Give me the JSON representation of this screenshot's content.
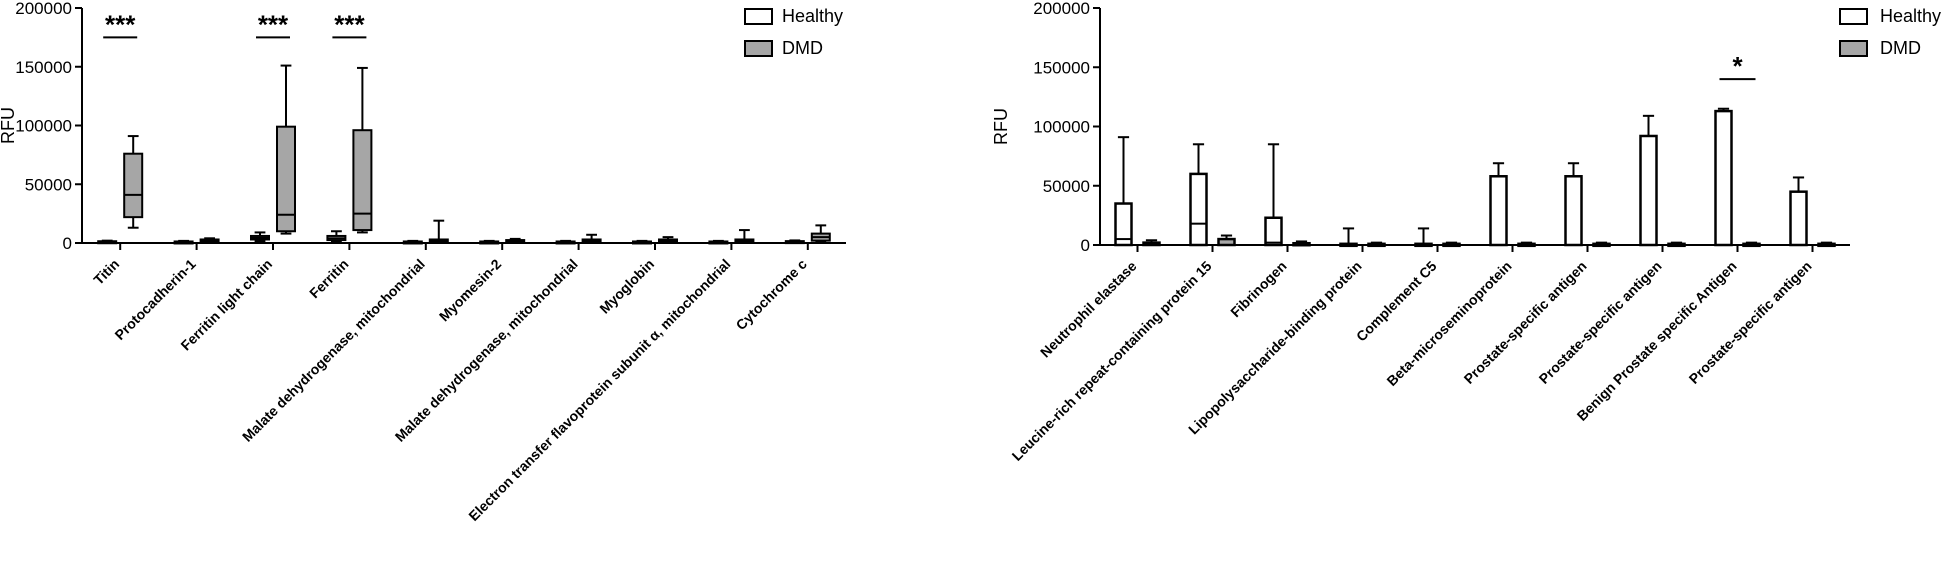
{
  "chart_data": [
    {
      "type": "box",
      "ylabel": "RFU",
      "ylim": [
        0,
        200000
      ],
      "yticks": [
        0,
        50000,
        100000,
        150000,
        200000
      ],
      "ytick_labels": [
        "0",
        "50000",
        "100000",
        "150000",
        "200000"
      ],
      "legend": {
        "placement": "top-right",
        "entries": [
          {
            "name": "Healthy",
            "color": "#ffffff"
          },
          {
            "name": "DMD",
            "color": "#a6a6a6"
          }
        ]
      },
      "categories": [
        "Titin",
        "Protocadherin-1",
        "Ferritin light chain",
        "Ferritin",
        "Malate dehydrogenase, mitochondrial",
        "Myomesin-2",
        "Malate dehydrogenase, mitochondrial",
        "Myoglobin",
        "Electron transfer flavoprotein subunit α, mitochondrial",
        "Cytochrome c"
      ],
      "series": [
        {
          "name": "Healthy",
          "color": "#ffffff",
          "boxes": [
            {
              "min": 500,
              "q1": 800,
              "median": 1200,
              "q3": 1500,
              "max": 2000
            },
            {
              "min": 500,
              "q1": 800,
              "median": 1000,
              "q3": 1300,
              "max": 1800
            },
            {
              "min": 1500,
              "q1": 3000,
              "median": 4500,
              "q3": 6000,
              "max": 9000
            },
            {
              "min": 1500,
              "q1": 2500,
              "median": 4000,
              "q3": 6000,
              "max": 10000
            },
            {
              "min": 500,
              "q1": 800,
              "median": 1000,
              "q3": 1300,
              "max": 1800
            },
            {
              "min": 500,
              "q1": 800,
              "median": 1000,
              "q3": 1300,
              "max": 1800
            },
            {
              "min": 500,
              "q1": 800,
              "median": 1000,
              "q3": 1300,
              "max": 1800
            },
            {
              "min": 500,
              "q1": 800,
              "median": 1000,
              "q3": 1300,
              "max": 1800
            },
            {
              "min": 500,
              "q1": 800,
              "median": 1000,
              "q3": 1300,
              "max": 1800
            },
            {
              "min": 500,
              "q1": 900,
              "median": 1200,
              "q3": 1600,
              "max": 2200
            }
          ]
        },
        {
          "name": "DMD",
          "color": "#a6a6a6",
          "boxes": [
            {
              "min": 13000,
              "q1": 22000,
              "median": 41000,
              "q3": 76000,
              "max": 91000
            },
            {
              "min": 500,
              "q1": 1000,
              "median": 2000,
              "q3": 3000,
              "max": 4000
            },
            {
              "min": 8000,
              "q1": 10000,
              "median": 24000,
              "q3": 99000,
              "max": 151000
            },
            {
              "min": 9000,
              "q1": 11000,
              "median": 25000,
              "q3": 96000,
              "max": 149000
            },
            {
              "min": 500,
              "q1": 1000,
              "median": 2000,
              "q3": 3000,
              "max": 19000
            },
            {
              "min": 500,
              "q1": 1000,
              "median": 1500,
              "q3": 2500,
              "max": 3500
            },
            {
              "min": 500,
              "q1": 1000,
              "median": 2000,
              "q3": 3000,
              "max": 7000
            },
            {
              "min": 500,
              "q1": 1000,
              "median": 2000,
              "q3": 3000,
              "max": 5000
            },
            {
              "min": 500,
              "q1": 1000,
              "median": 2000,
              "q3": 3000,
              "max": 11000
            },
            {
              "min": 1000,
              "q1": 2000,
              "median": 5000,
              "q3": 8000,
              "max": 15000
            }
          ]
        }
      ],
      "significance": [
        {
          "category_index": 0,
          "label": "***",
          "y": 175000
        },
        {
          "category_index": 2,
          "label": "***",
          "y": 175000
        },
        {
          "category_index": 3,
          "label": "***",
          "y": 175000
        }
      ]
    },
    {
      "type": "bar",
      "ylabel": "RFU",
      "ylim": [
        0,
        200000
      ],
      "yticks": [
        0,
        50000,
        100000,
        150000,
        200000
      ],
      "ytick_labels": [
        "0",
        "50000",
        "100000",
        "150000",
        "200000"
      ],
      "legend": {
        "placement": "top-right",
        "entries": [
          {
            "name": "Healthy",
            "color": "#ffffff"
          },
          {
            "name": "DMD",
            "color": "#a6a6a6"
          }
        ]
      },
      "categories": [
        "Neutrophil elastase",
        "Leucine-rich repeat-containing protein 15",
        "Fibrinogen",
        "Lipopolysaccharide-binding protein",
        "Complement C5",
        "Beta-microseminoprotein",
        "Prostate-specific antigen",
        "Prostate-specific antigen",
        "Benign Prostate specific Antigen",
        "Prostate-specific antigen"
      ],
      "series": [
        {
          "name": "Healthy",
          "color": "#ffffff",
          "values": [
            35000,
            60000,
            23000,
            1000,
            1000,
            58000,
            58000,
            92000,
            113000,
            45000
          ],
          "err_upper": [
            91000,
            85000,
            85000,
            14000,
            14000,
            69000,
            69000,
            109000,
            115000,
            57000
          ],
          "median": [
            5000,
            18000,
            2000,
            null,
            null,
            null,
            null,
            null,
            null,
            null
          ]
        },
        {
          "name": "DMD",
          "color": "#a6a6a6",
          "values": [
            2000,
            5000,
            1500,
            1000,
            1000,
            1000,
            1000,
            1000,
            1000,
            1000
          ],
          "err_upper": [
            4000,
            8000,
            3000,
            2000,
            2000,
            2000,
            2000,
            2000,
            2000,
            2000
          ]
        }
      ],
      "significance": [
        {
          "category_index": 8,
          "label": "*",
          "y": 140000
        }
      ]
    }
  ]
}
